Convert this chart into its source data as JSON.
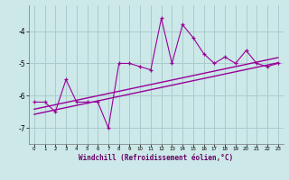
{
  "x_data": [
    0,
    1,
    2,
    3,
    4,
    5,
    6,
    7,
    8,
    9,
    10,
    11,
    12,
    13,
    14,
    15,
    16,
    17,
    18,
    19,
    20,
    21,
    22,
    23
  ],
  "y_data": [
    -6.2,
    -6.2,
    -6.5,
    -5.5,
    -6.2,
    -6.2,
    -6.2,
    -7.0,
    -5.0,
    -5.0,
    -5.1,
    -5.2,
    -3.6,
    -5.0,
    -3.8,
    -4.2,
    -4.7,
    -5.0,
    -4.8,
    -5.0,
    -4.6,
    -5.0,
    -5.1,
    -5.0
  ],
  "line_color": "#990099",
  "bg_color": "#cce8e8",
  "grid_color": "#aacccc",
  "xlabel": "Windchill (Refroidissement éolien,°C)",
  "xlim": [
    -0.5,
    23.5
  ],
  "ylim": [
    -7.5,
    -3.2
  ],
  "yticks": [
    -7,
    -6,
    -5,
    -4
  ],
  "xticks": [
    0,
    1,
    2,
    3,
    4,
    5,
    6,
    7,
    8,
    9,
    10,
    11,
    12,
    13,
    14,
    15,
    16,
    17,
    18,
    19,
    20,
    21,
    22,
    23
  ],
  "trend1_x": [
    0,
    23
  ],
  "trend1_y": [
    -6.42,
    -4.82
  ],
  "trend2_x": [
    0,
    23
  ],
  "trend2_y": [
    -6.58,
    -4.98
  ]
}
